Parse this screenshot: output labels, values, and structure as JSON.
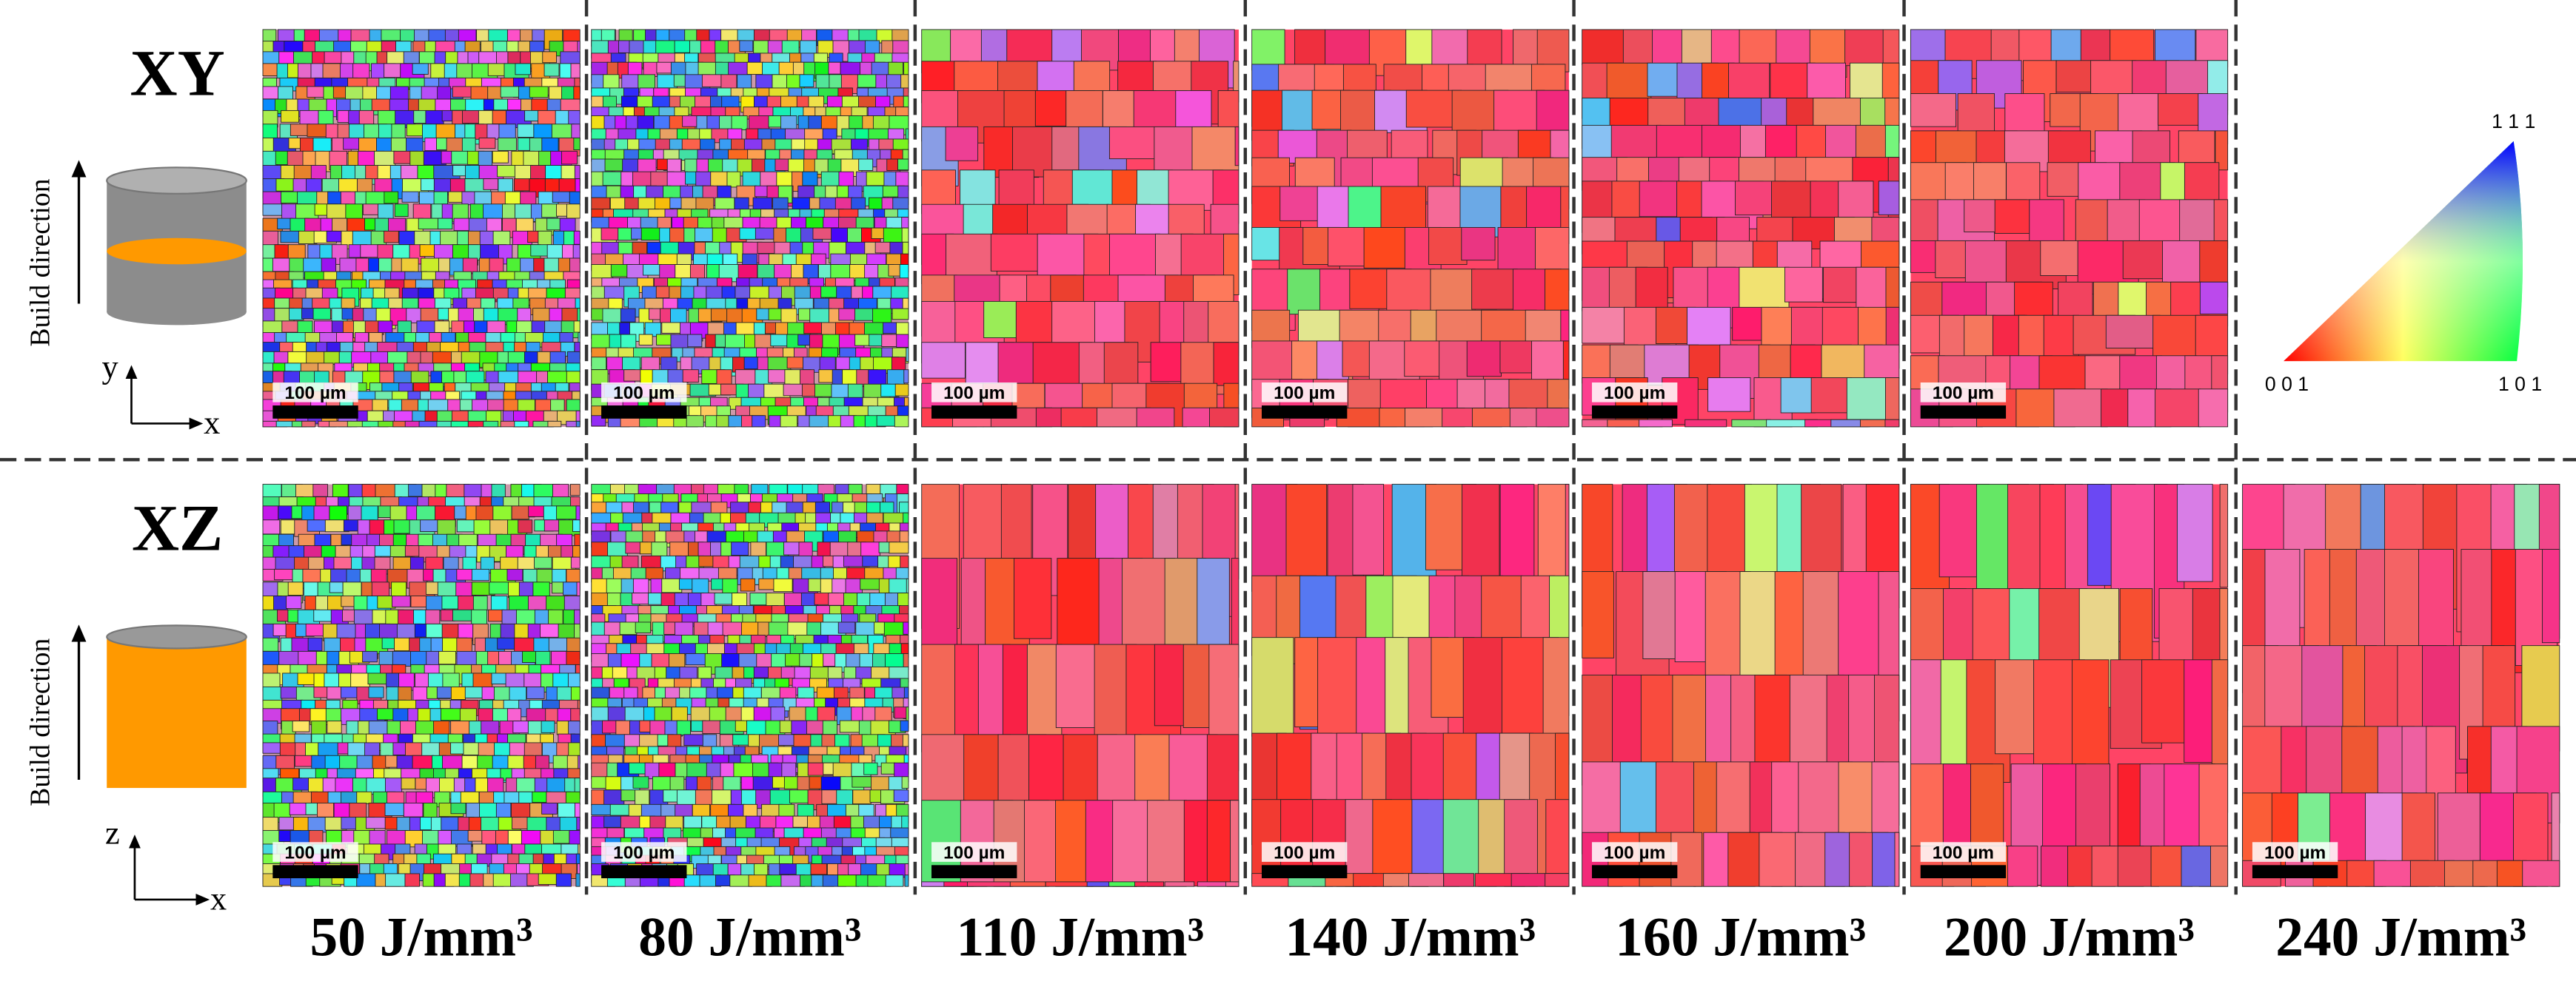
{
  "rows": [
    {
      "plane": "XY",
      "build_direction": "Build direction",
      "axis_labels": [
        "y",
        "x"
      ],
      "scale_bars": [
        "100 µm",
        "100 µm",
        "100 µm",
        "100 µm",
        "100 µm",
        "100 µm"
      ]
    },
    {
      "plane": "XZ",
      "build_direction": "Build direction",
      "axis_labels": [
        "z",
        "x"
      ],
      "scale_bars": [
        "100 µm",
        "100 µm",
        "100 µm",
        "100 µm",
        "100 µm",
        "100 µm",
        "100 µm"
      ]
    }
  ],
  "energy_densities": [
    "50 J/mm³",
    "80 J/mm³",
    "110 J/mm³",
    "140 J/mm³",
    "160 J/mm³",
    "200 J/mm³",
    "240 J/mm³"
  ],
  "ipf_legend": {
    "top": "1 1 1",
    "bottom_left": "0 0 1",
    "bottom_right": "1 0 1"
  }
}
